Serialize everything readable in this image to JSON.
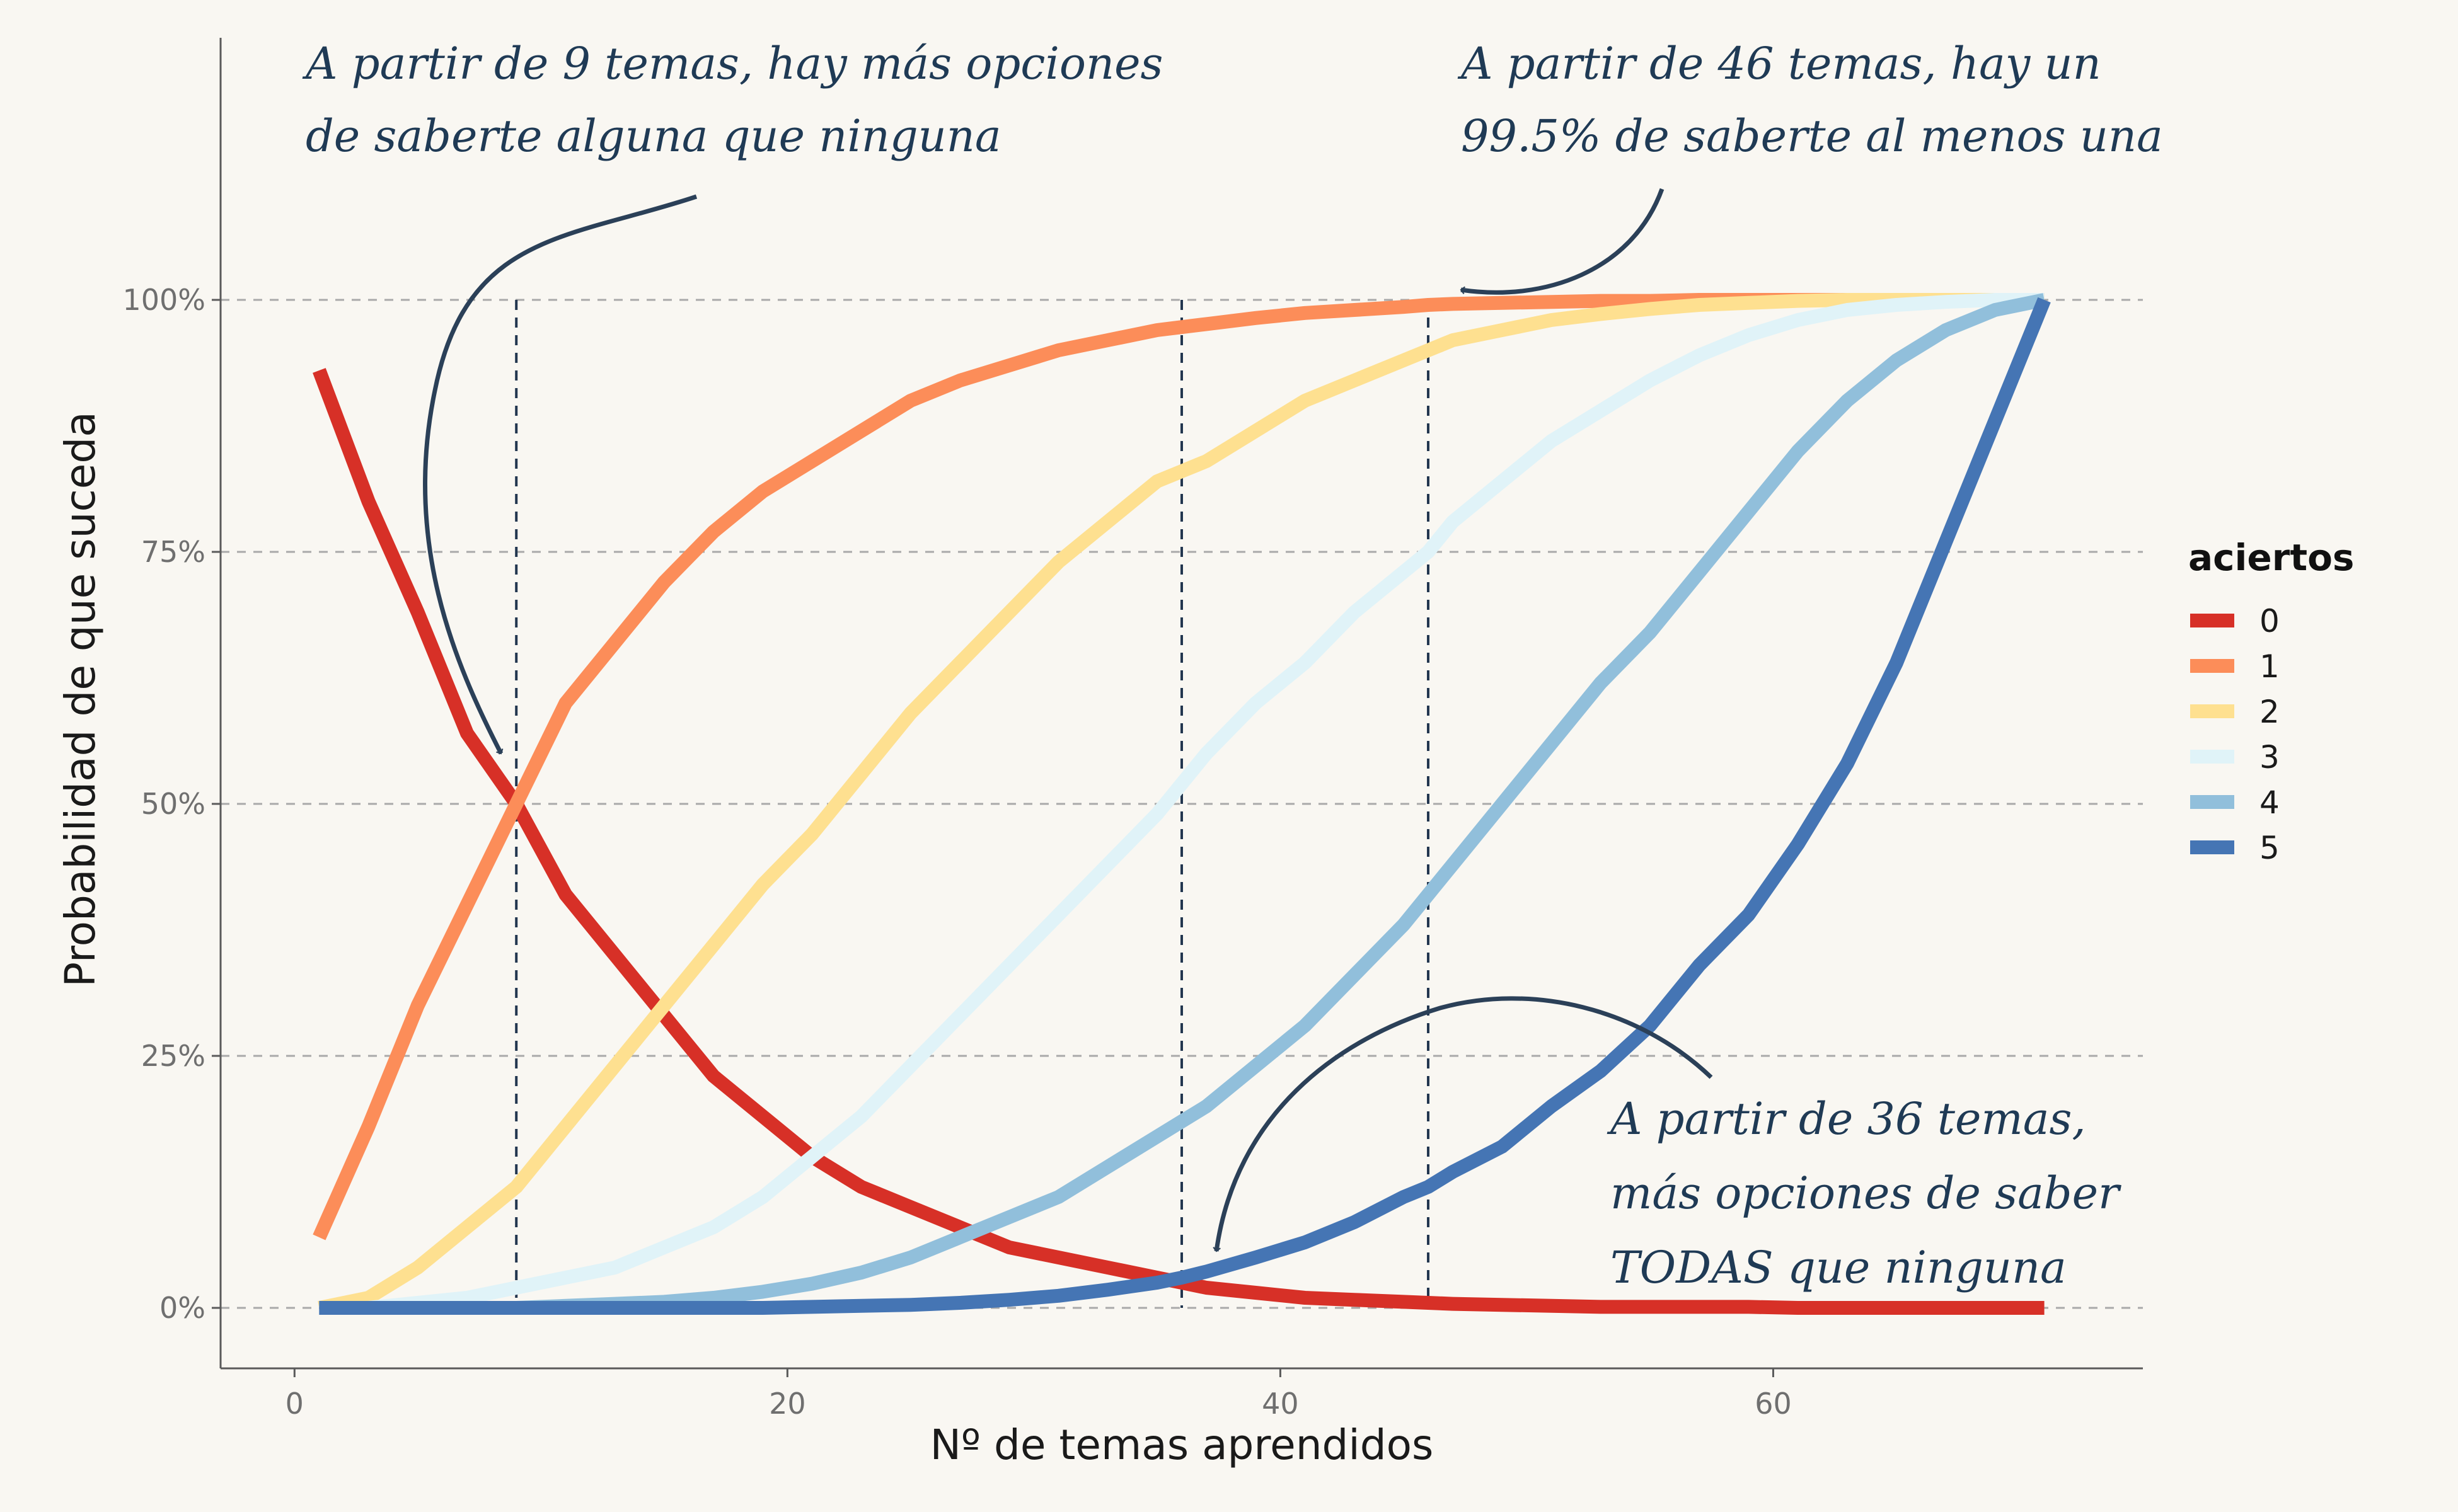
{
  "chart_data": {
    "type": "line",
    "xlabel": "Nº de temas aprendidos",
    "ylabel": "Probabilidad de que suceda",
    "xlim": [
      -3,
      75
    ],
    "ylim": [
      -6,
      126
    ],
    "x_ticks": [
      0,
      20,
      40,
      60
    ],
    "y_ticks": [
      0,
      25,
      50,
      75,
      100
    ],
    "y_tick_labels": [
      "0%",
      "25%",
      "50%",
      "75%",
      "100%"
    ],
    "x_tick_labels": [
      "0",
      "20",
      "40",
      "60"
    ],
    "grid": "horizontal dashed",
    "legend": {
      "title": "aciertos",
      "placement": "right",
      "entries": [
        "0",
        "1",
        "2",
        "3",
        "4",
        "5"
      ]
    },
    "x": [
      1,
      3,
      5,
      7,
      9,
      11,
      13,
      15,
      17,
      19,
      21,
      23,
      25,
      27,
      29,
      31,
      33,
      35,
      36,
      37,
      39,
      41,
      43,
      45,
      46,
      47,
      49,
      51,
      53,
      55,
      57,
      59,
      61,
      63,
      65,
      67,
      69,
      71
    ],
    "series": [
      {
        "name": "0",
        "color": "#d73027",
        "values": [
          93,
          80,
          69,
          57,
          50,
          41,
          35,
          29,
          23,
          19,
          15,
          12,
          10,
          8,
          6,
          5,
          4,
          3,
          2.5,
          2,
          1.5,
          1,
          0.8,
          0.6,
          0.5,
          0.4,
          0.3,
          0.2,
          0.1,
          0.1,
          0.1,
          0.1,
          0,
          0,
          0,
          0,
          0,
          0
        ]
      },
      {
        "name": "1",
        "color": "#fc8d59",
        "values": [
          7,
          18,
          30,
          40,
          50,
          60,
          66,
          72,
          77,
          81,
          84,
          87,
          90,
          92,
          93.5,
          95,
          96,
          97,
          97.3,
          97.6,
          98.2,
          98.7,
          99,
          99.3,
          99.5,
          99.6,
          99.7,
          99.8,
          99.9,
          99.9,
          100,
          100,
          100,
          100,
          100,
          100,
          100,
          100
        ]
      },
      {
        "name": "2",
        "color": "#fee090",
        "values": [
          0,
          1,
          4,
          8,
          12,
          18,
          24,
          30,
          36,
          42,
          47,
          53,
          59,
          64,
          69,
          74,
          78,
          82,
          83,
          84,
          87,
          90,
          92,
          94,
          95,
          96,
          97,
          98,
          98.6,
          99.1,
          99.5,
          99.7,
          99.9,
          100,
          100,
          100,
          100,
          100
        ]
      },
      {
        "name": "3",
        "color": "#e0f3f8",
        "values": [
          0,
          0,
          0.5,
          1,
          2,
          3,
          4,
          6,
          8,
          11,
          15,
          19,
          24,
          29,
          34,
          39,
          44,
          49,
          52,
          55,
          60,
          64,
          69,
          73,
          75,
          78,
          82,
          86,
          89,
          92,
          94.5,
          96.5,
          98,
          99,
          99.5,
          99.8,
          100,
          100
        ]
      },
      {
        "name": "4",
        "color": "#91bfdb",
        "values": [
          0,
          0,
          0,
          0,
          0,
          0.2,
          0.4,
          0.6,
          1,
          1.6,
          2.4,
          3.5,
          5,
          7,
          9,
          11,
          14,
          17,
          18.5,
          20,
          24,
          28,
          33,
          38,
          41,
          44,
          50,
          56,
          62,
          67,
          73,
          79,
          85,
          90,
          94,
          97,
          99,
          100
        ]
      },
      {
        "name": "5",
        "color": "#4575b4",
        "values": [
          0,
          0,
          0,
          0,
          0,
          0,
          0,
          0,
          0,
          0,
          0.1,
          0.2,
          0.3,
          0.5,
          0.8,
          1.2,
          1.8,
          2.5,
          3,
          3.6,
          5,
          6.5,
          8.5,
          11,
          12,
          13.5,
          16,
          20,
          23.5,
          28,
          34,
          39,
          46,
          54,
          64,
          76,
          88,
          100
        ]
      }
    ],
    "reference_lines_x": [
      9,
      36,
      46
    ],
    "annotations": [
      {
        "id": "a9",
        "lines": [
          "A partir de 9 temas, hay más opciones",
          "de saberte alguna que ninguna"
        ]
      },
      {
        "id": "a46",
        "lines": [
          "A partir de 46 temas, hay un",
          "99.5% de saberte al menos una"
        ]
      },
      {
        "id": "a36",
        "lines": [
          "A partir de 36 temas,",
          "más opciones de saber",
          "TODAS que ninguna"
        ]
      }
    ]
  }
}
